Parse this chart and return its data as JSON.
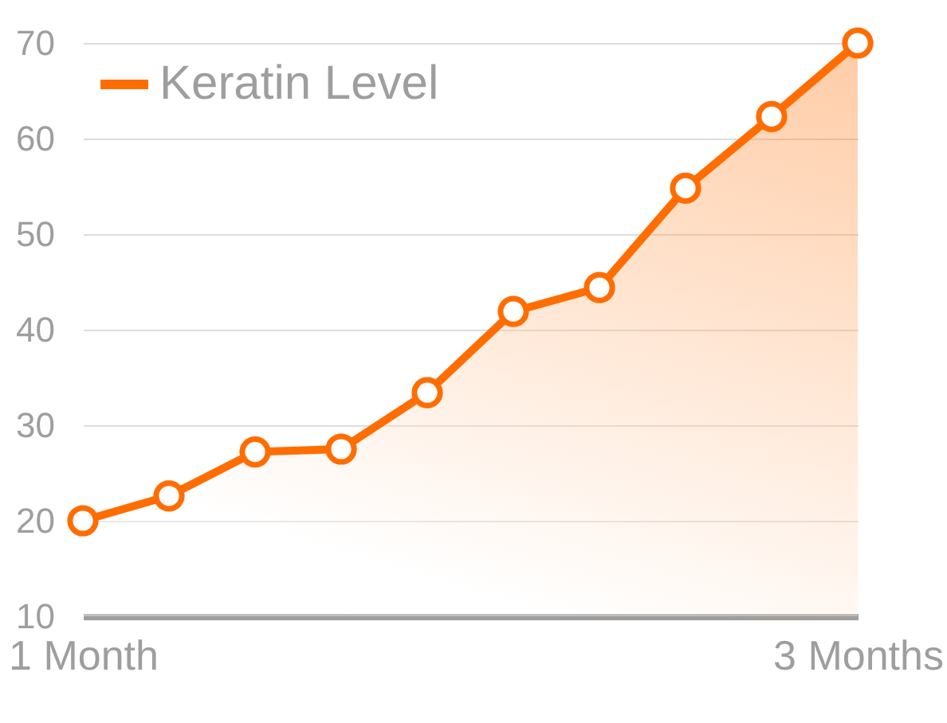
{
  "chart_data": {
    "type": "area",
    "categories": [
      "1 Month",
      null,
      null,
      null,
      null,
      null,
      null,
      null,
      null,
      "3 Months"
    ],
    "series": [
      {
        "name": "Keratin Level",
        "color": "#ff6d00",
        "values": [
          20,
          22.6,
          27.2,
          27.5,
          33.4,
          41.9,
          44.4,
          54.8,
          62.3,
          70
        ]
      }
    ],
    "ylim": [
      10,
      70
    ],
    "yticks": [
      10,
      20,
      30,
      40,
      50,
      60,
      70
    ],
    "grid": "y",
    "legend": "top left",
    "marker": "circle",
    "line_style": "solid"
  }
}
